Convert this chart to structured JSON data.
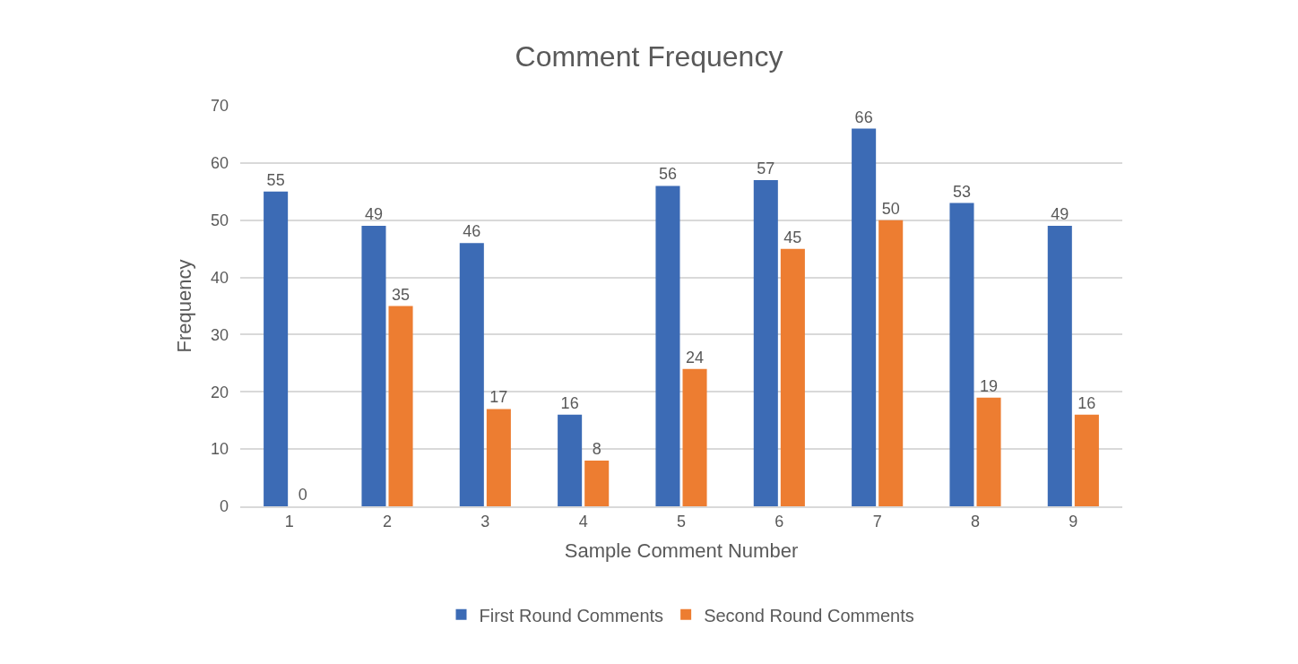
{
  "chart_data": {
    "type": "bar",
    "title": "Comment Frequency",
    "xlabel": "Sample Comment Number",
    "ylabel": "Frequency",
    "categories": [
      "1",
      "2",
      "3",
      "4",
      "5",
      "6",
      "7",
      "8",
      "9"
    ],
    "series": [
      {
        "name": "First Round Comments",
        "color": "#3c6bb5",
        "values": [
          55,
          49,
          46,
          16,
          56,
          57,
          66,
          53,
          49
        ]
      },
      {
        "name": "Second Round Comments",
        "color": "#ed7d31",
        "values": [
          0,
          35,
          17,
          8,
          24,
          45,
          50,
          19,
          16
        ]
      }
    ],
    "ylim": [
      0,
      70
    ],
    "yticks": [
      0,
      10,
      20,
      30,
      40,
      50,
      60,
      70
    ],
    "grid": "y",
    "legend": "bottom",
    "data_labels": true
  }
}
